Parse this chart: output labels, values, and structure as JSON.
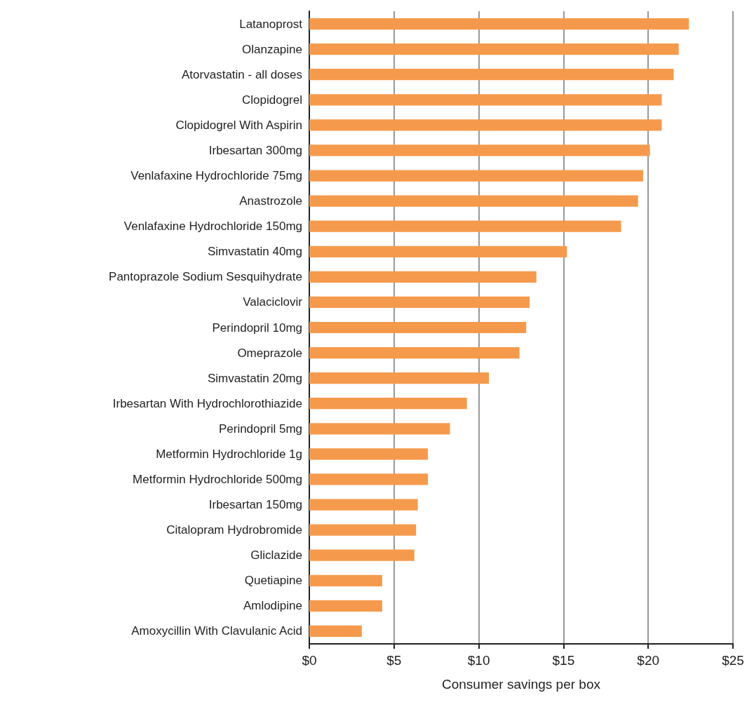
{
  "chart_data": {
    "type": "bar",
    "orientation": "horizontal",
    "xlabel": "Consumer savings per box",
    "categories": [
      "Latanoprost",
      "Olanzapine",
      "Atorvastatin - all doses",
      "Clopidogrel",
      "Clopidogrel With Aspirin",
      "Irbesartan 300mg",
      "Venlafaxine Hydrochloride 75mg",
      "Anastrozole",
      "Venlafaxine Hydrochloride 150mg",
      "Simvastatin 40mg",
      "Pantoprazole Sodium Sesquihydrate",
      "Valaciclovir",
      "Perindopril 10mg",
      "Omeprazole",
      "Simvastatin 20mg",
      "Irbesartan With Hydrochlorothiazide",
      "Perindopril 5mg",
      "Metformin Hydrochloride 1g",
      "Metformin Hydrochloride 500mg",
      "Irbesartan 150mg",
      "Citalopram Hydrobromide",
      "Gliclazide",
      "Quetiapine",
      "Amlodipine",
      "Amoxycillin With Clavulanic Acid"
    ],
    "values": [
      22.4,
      21.8,
      21.5,
      20.8,
      20.8,
      20.1,
      19.7,
      19.4,
      18.4,
      15.2,
      13.4,
      13.0,
      12.8,
      12.4,
      10.6,
      9.3,
      8.3,
      7.0,
      7.0,
      6.4,
      6.3,
      6.2,
      4.3,
      4.3,
      3.1
    ],
    "color": "#f59a4c",
    "xlim": [
      0,
      25
    ],
    "xticks": [
      {
        "value": 0,
        "label": "$0"
      },
      {
        "value": 5,
        "label": "$5"
      },
      {
        "value": 10,
        "label": "$10"
      },
      {
        "value": 15,
        "label": "$15"
      },
      {
        "value": 20,
        "label": "$20"
      },
      {
        "value": 25,
        "label": "$25"
      }
    ],
    "grid": "x"
  }
}
